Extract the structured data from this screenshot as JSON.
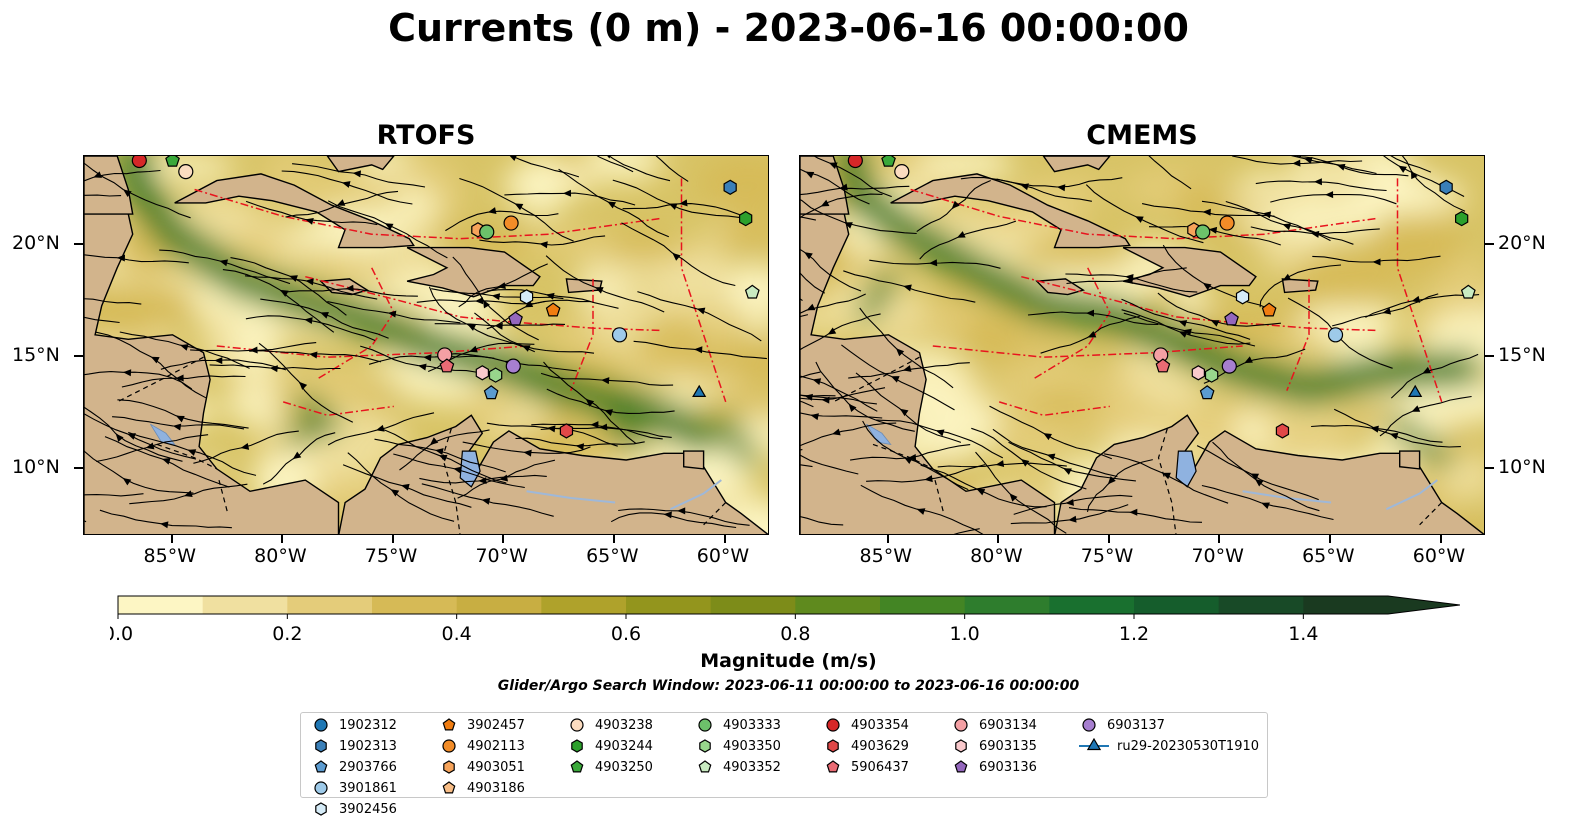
{
  "title": "Currents (0 m) - 2023-06-16 00:00:00",
  "panels": [
    {
      "title": "RTOFS",
      "id": "rtofs"
    },
    {
      "title": "CMEMS",
      "id": "cmems"
    }
  ],
  "axes": {
    "lon_ticks": [
      "85°W",
      "80°W",
      "75°W",
      "70°W",
      "65°W",
      "60°W"
    ],
    "lat_ticks": [
      "20°N",
      "15°N",
      "10°N"
    ],
    "lon_range": [
      -89,
      -58
    ],
    "lat_range": [
      7,
      24
    ]
  },
  "colorbar": {
    "label": "Magnitude (m/s)",
    "ticks": [
      "0.0",
      "0.2",
      "0.4",
      "0.6",
      "0.8",
      "1.0",
      "1.2",
      "1.4"
    ],
    "range": [
      0,
      1.5
    ],
    "extend": "max",
    "colors": [
      "#fdf6c4",
      "#f0e0a0",
      "#e4cc7a",
      "#d6ba56",
      "#c8ae42",
      "#afa22b",
      "#93951d",
      "#7d8c19",
      "#5f8a1e",
      "#438524",
      "#2e7d2d",
      "#19702f",
      "#155d2c",
      "#184a27",
      "#1a3a20"
    ]
  },
  "colors": {
    "land": "#d2b48c",
    "ocean_base": "#d8c466",
    "eez_line": "#e8141e",
    "lake": "#8fb2e0"
  },
  "search_window": "Glider/Argo Search Window: 2023-06-11 00:00:00 to 2023-06-16 00:00:00",
  "legend": [
    {
      "label": "1902312",
      "marker": "circle",
      "color": "#1f77b4"
    },
    {
      "label": "1902313",
      "marker": "hexagon",
      "color": "#3a7fb8"
    },
    {
      "label": "2903766",
      "marker": "pentagon",
      "color": "#5b9bd0"
    },
    {
      "label": "3901861",
      "marker": "circle",
      "color": "#9ecae9"
    },
    {
      "label": "3902456",
      "marker": "hexagon",
      "color": "#d5ebf7"
    },
    {
      "label": "3902457",
      "marker": "pentagon",
      "color": "#f07d11"
    },
    {
      "label": "4902113",
      "marker": "circle",
      "color": "#f28c28"
    },
    {
      "label": "4903051",
      "marker": "hexagon",
      "color": "#f6a35a"
    },
    {
      "label": "4903186",
      "marker": "pentagon",
      "color": "#f8bd86"
    },
    {
      "label": "4903238",
      "marker": "circle",
      "color": "#fbdcc0"
    },
    {
      "label": "4903244",
      "marker": "hexagon",
      "color": "#2ca02c"
    },
    {
      "label": "4903250",
      "marker": "pentagon",
      "color": "#3aa83a"
    },
    {
      "label": "4903333",
      "marker": "circle",
      "color": "#6cc16a"
    },
    {
      "label": "4903350",
      "marker": "hexagon",
      "color": "#98d68c"
    },
    {
      "label": "4903352",
      "marker": "pentagon",
      "color": "#c9ebc1"
    },
    {
      "label": "4903354",
      "marker": "circle",
      "color": "#d62728"
    },
    {
      "label": "4903629",
      "marker": "hexagon",
      "color": "#e04848"
    },
    {
      "label": "5906437",
      "marker": "pentagon",
      "color": "#ea6b74"
    },
    {
      "label": "6903134",
      "marker": "circle",
      "color": "#f4a0a4"
    },
    {
      "label": "6903135",
      "marker": "hexagon",
      "color": "#f9c9cc"
    },
    {
      "label": "6903136",
      "marker": "pentagon",
      "color": "#9467bd"
    },
    {
      "label": "6903137",
      "marker": "circle",
      "color": "#a77fd0"
    },
    {
      "label": "ru29-20230530T1910",
      "marker": "triangle",
      "color": "#1f77b4",
      "line": true
    }
  ],
  "platform_positions": [
    {
      "id": "4903354",
      "lon": -86.5,
      "lat": 23.8
    },
    {
      "id": "4903250",
      "lon": -85.0,
      "lat": 23.8
    },
    {
      "id": "4903238",
      "lon": -84.4,
      "lat": 23.3
    },
    {
      "id": "4903051",
      "lon": -71.2,
      "lat": 20.7
    },
    {
      "id": "4903333",
      "lon": -70.8,
      "lat": 20.6
    },
    {
      "id": "4902113",
      "lon": -69.7,
      "lat": 21.0
    },
    {
      "id": "1902313",
      "lon": -59.8,
      "lat": 22.6
    },
    {
      "id": "4903244",
      "lon": -59.1,
      "lat": 21.2
    },
    {
      "id": "3902456",
      "lon": -69.0,
      "lat": 17.7
    },
    {
      "id": "3902457",
      "lon": -67.8,
      "lat": 17.1
    },
    {
      "id": "4903352",
      "lon": -58.8,
      "lat": 17.9
    },
    {
      "id": "6903136",
      "lon": -69.5,
      "lat": 16.7
    },
    {
      "id": "3901861",
      "lon": -64.8,
      "lat": 16.0
    },
    {
      "id": "6903134",
      "lon": -72.7,
      "lat": 15.1
    },
    {
      "id": "5906437",
      "lon": -72.6,
      "lat": 14.6
    },
    {
      "id": "6903135",
      "lon": -71.0,
      "lat": 14.3
    },
    {
      "id": "4903350",
      "lon": -70.4,
      "lat": 14.2
    },
    {
      "id": "6903137",
      "lon": -69.6,
      "lat": 14.6
    },
    {
      "id": "2903766",
      "lon": -70.6,
      "lat": 13.4
    },
    {
      "id": "4903629",
      "lon": -67.2,
      "lat": 11.7
    },
    {
      "id": "ru29-20230530T1910",
      "lon": -61.2,
      "lat": 13.4
    }
  ]
}
